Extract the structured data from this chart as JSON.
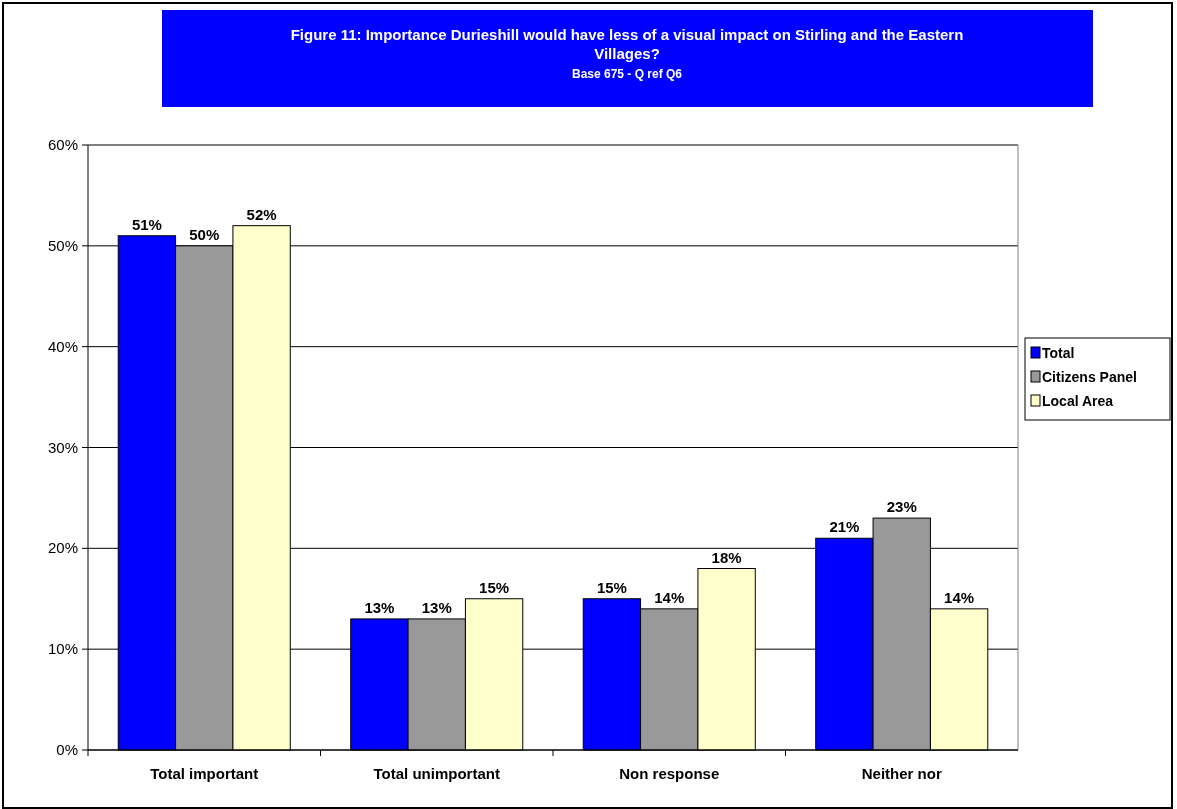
{
  "chart_data": {
    "type": "bar",
    "title": "Figure 11: Importance Durieshill would have less of a visual impact on Stirling and the Eastern Villages?",
    "subtitle": "Base 675 - Q ref Q6",
    "categories": [
      "Total important",
      "Total unimportant",
      "Non response",
      "Neither nor"
    ],
    "series": [
      {
        "name": "Total",
        "color": "#0000ff",
        "values": [
          51,
          13,
          15,
          21
        ],
        "value_labels": [
          "51%",
          "13%",
          "15%",
          "21%"
        ]
      },
      {
        "name": "Citizens Panel",
        "color": "#999999",
        "values": [
          50,
          13,
          14,
          23
        ],
        "value_labels": [
          "50%",
          "13%",
          "14%",
          "23%"
        ]
      },
      {
        "name": "Local Area",
        "color": "#ffffcc",
        "values": [
          52,
          15,
          18,
          14
        ],
        "value_labels": [
          "52%",
          "15%",
          "18%",
          "14%"
        ]
      }
    ],
    "ylim": [
      0,
      60
    ],
    "yticks": [
      {
        "value": 0,
        "label": "0%"
      },
      {
        "value": 10,
        "label": "10%"
      },
      {
        "value": 20,
        "label": "20%"
      },
      {
        "value": 30,
        "label": "30%"
      },
      {
        "value": 40,
        "label": "40%"
      },
      {
        "value": 50,
        "label": "50%"
      },
      {
        "value": 60,
        "label": "60%"
      }
    ],
    "grid": "y",
    "legend": "right"
  }
}
